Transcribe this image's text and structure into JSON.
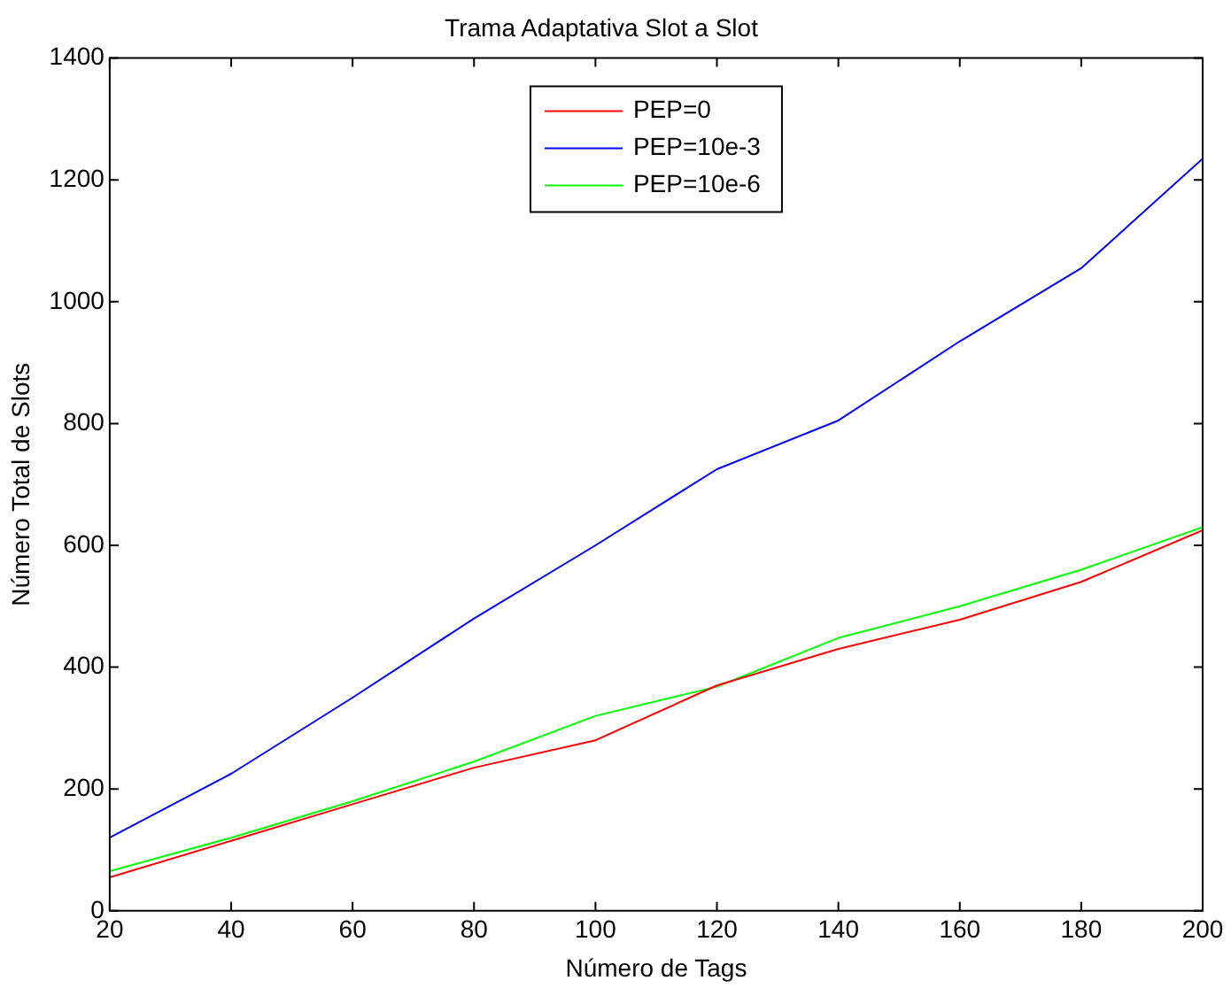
{
  "chart_data": {
    "type": "line",
    "title": "Trama Adaptativa Slot a Slot",
    "xlabel": "Número de Tags",
    "ylabel": "Número Total de Slots",
    "x": [
      20,
      40,
      60,
      80,
      100,
      120,
      140,
      160,
      180,
      200
    ],
    "series": [
      {
        "name": "PEP=0",
        "color": "#ff0000",
        "values": [
          55,
          115,
          175,
          235,
          280,
          370,
          430,
          478,
          540,
          625
        ]
      },
      {
        "name": "PEP=10e-3",
        "color": "#0000ff",
        "values": [
          120,
          225,
          350,
          480,
          600,
          725,
          805,
          935,
          1055,
          1235
        ]
      },
      {
        "name": "PEP=10e-6",
        "color": "#00ff00",
        "values": [
          65,
          120,
          180,
          245,
          320,
          368,
          448,
          500,
          560,
          630
        ]
      }
    ],
    "xlim": [
      20,
      200
    ],
    "xticks": [
      20,
      40,
      60,
      80,
      100,
      120,
      140,
      160,
      180,
      200
    ],
    "ylim": [
      0,
      1400
    ],
    "yticks": [
      0,
      200,
      400,
      600,
      800,
      1000,
      1200,
      1400
    ],
    "grid": false,
    "legend": "top",
    "marker": "none",
    "line_style": "solid"
  }
}
